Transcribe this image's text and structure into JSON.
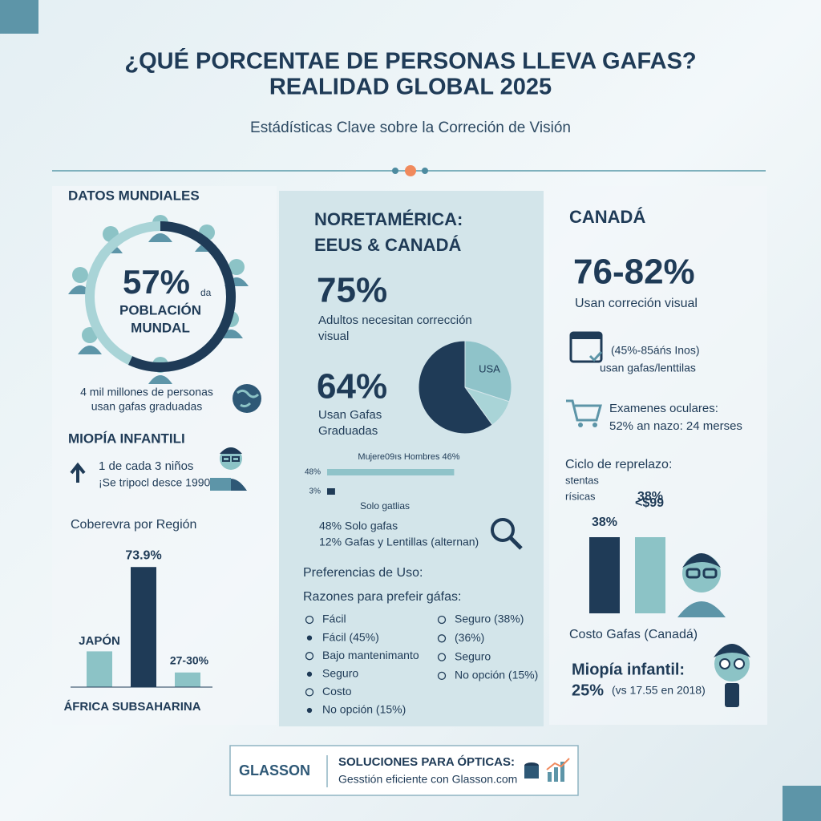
{
  "header": {
    "title_line1": "¿QUÉ PORCENTAE DE PERSONAS LLEVA GAFAS?",
    "title_line2": "REALIDAD GLOBAL 2025",
    "subtitle": "Estádísticas Clave sobre la Correción de Visión"
  },
  "world": {
    "heading": "DATOS MUNDIALES",
    "share": 57,
    "share_label": "57%",
    "share_suffix": "da",
    "circle_line1": "POBLACIÓN",
    "circle_line2": "MUNDAL",
    "note_line1": "4 mil millones de personas",
    "note_line2": "usan gafas graduadas",
    "myopia_heading": "MIOPÍA INFANTILI",
    "myopia_line1": "1 de cada 3 niños",
    "myopia_line2": "¡Se tripocl desce 1990!",
    "region_chart": {
      "type": "bar",
      "title": "Coberevra por Región",
      "x_label": "ÁFRICA SUBSAHARINA",
      "values": [
        22,
        73.9,
        9
      ],
      "value_labels": [
        null,
        "73.9%",
        null
      ],
      "annotations": [
        "JAPÓN",
        "27-30%"
      ],
      "colors": [
        "#8cc3c6",
        "#1f3b57",
        "#8cc3c6"
      ],
      "ylim": [
        0,
        75
      ]
    }
  },
  "north_america": {
    "heading_line1": "NORETAMÉRICA:",
    "heading_line2": "EEUS & CANADÁ",
    "stat1": "75%",
    "stat1_line1": "Adultos necesitan corrección",
    "stat1_line2": "visual",
    "stat2": "64%",
    "stat2_line1": "Usan Gafas",
    "stat2_line2": "Graduadas",
    "pie": {
      "type": "pie",
      "categories": [
        "USA",
        null,
        null
      ],
      "values": [
        30,
        10,
        60
      ],
      "colors": [
        "#8fc3c9",
        "#a9d4d7",
        "#1f3b57"
      ]
    },
    "gender_bars": {
      "type": "hbar",
      "title": "Mujere09ıs Hombres 46%",
      "values": [
        48,
        3
      ],
      "value_labels": [
        "48%",
        "3%"
      ],
      "colors": [
        "#8fc3c9",
        "#1f3b57"
      ],
      "x_label": "Solo gatlias",
      "xlim": [
        0,
        50
      ]
    },
    "line1": "48% Solo gafas",
    "line2": "12% Gafas y Lentillas (alternan)",
    "pref_heading": "Preferencias de Uso:",
    "reasons_heading": "Razones para prefeir gáfas:",
    "reasons_left": [
      "Fácil",
      "Fácil (45%)",
      "Bajo mantenimanto",
      "Seguro",
      "Costo",
      "No opción (15%)"
    ],
    "reasons_right": [
      "Seguro (38%)",
      "(36%)",
      "Seguro",
      "No opción (15%)"
    ]
  },
  "canada": {
    "heading": "CANADÁ",
    "stat": "76-82%",
    "stat_line": "Usan correción visual",
    "age_line1": "(45%-85áńs Inos)",
    "age_line2": "usan gafas/lenttilas",
    "exam_line1": "Examenes oculares:",
    "exam_line2": "52% an nazo: 24 merses",
    "cycle_line1": "Ciclo de reprelazo:",
    "cycle_line2": "stentas",
    "cycle_line3": "rísicas",
    "cost_chart": {
      "type": "bar",
      "values": [
        38,
        38
      ],
      "value_labels": [
        "38%",
        "38%"
      ],
      "sublabel": "<$99",
      "colors": [
        "#1f3b57",
        "#8cc3c6"
      ],
      "x_label": "Costo Gafas (Canadá)",
      "ylim": [
        0,
        40
      ]
    },
    "myopia_heading": "Miopía infantil:",
    "myopia_value": "25%",
    "myopia_note": "(vs 17.55 en 2018)"
  },
  "footer": {
    "brand": "GLASSON",
    "line1": "SOLUCIONES PARA ÓPTICAS:",
    "line2": "Gesstión eficiente con Glasson.com"
  }
}
